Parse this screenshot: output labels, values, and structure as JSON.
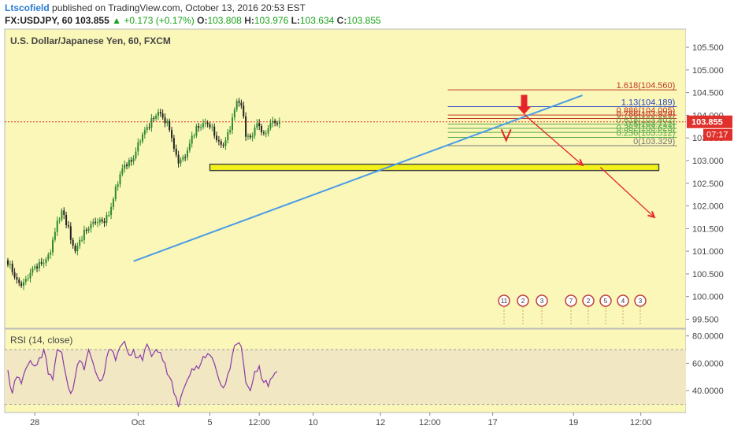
{
  "header": {
    "author": "Ltscofield",
    "published_text": "published on TradingView.com, October 13, 2016 20:53 EST",
    "symbol": "FX:USDJPY, 60",
    "last": "103.855",
    "change": "+0.173 (+0.17%)",
    "o_label": "O:",
    "o_value": "103.808",
    "h_label": "H:",
    "h_value": "103.976",
    "l_label": "L:",
    "l_value": "103.634",
    "c_label": "C:",
    "c_value": "103.855"
  },
  "colors": {
    "plot_bg": "#faf7b8",
    "candle_up": "#2e8b2e",
    "candle_down": "#222222",
    "trendline": "#4a9be8",
    "fib_red": "#c0392b",
    "fib_blue": "#2a44c8",
    "fib_green": "#59a84b",
    "zone_fill": "#f2f21a",
    "arrow": "#e8242b",
    "rsi_line": "#8a3aa8",
    "rsi_band": "#f1e7c2",
    "price_tag": "#e0302b"
  },
  "chart_data": [
    {
      "type": "candlestick",
      "title": "U.S. Dollar/Japanese Yen, 60, FXCM",
      "y_ticks": [
        "105.500",
        "105.000",
        "104.500",
        "104.000",
        "103.500",
        "103.000",
        "102.500",
        "102.000",
        "101.500",
        "101.000",
        "100.500",
        "100.000",
        "99.500"
      ],
      "y_tick_values": [
        105.5,
        105.0,
        104.5,
        104.0,
        103.5,
        103.0,
        102.5,
        102.0,
        101.5,
        101.0,
        100.5,
        100.0,
        99.5
      ],
      "ylim": [
        99.3,
        105.9
      ],
      "x_ticks": [
        "28",
        "Oct",
        "5",
        "12:00",
        "10",
        "12",
        "12:00",
        "17",
        "19",
        "12:00"
      ],
      "x_tick_index": [
        6,
        29,
        45,
        56,
        68,
        83,
        94,
        108,
        126,
        141
      ],
      "last_price_tag": "103.855",
      "countdown_tag": "07:17",
      "close_path": [
        [
          0,
          100.8
        ],
        [
          1,
          100.6
        ],
        [
          2,
          100.35
        ],
        [
          3,
          100.25
        ],
        [
          4,
          100.3
        ],
        [
          5,
          100.55
        ],
        [
          6,
          100.65
        ],
        [
          7,
          100.7
        ],
        [
          8,
          100.75
        ],
        [
          9,
          100.8
        ],
        [
          10,
          101.2
        ],
        [
          11,
          101.6
        ],
        [
          12,
          101.9
        ],
        [
          13,
          101.7
        ],
        [
          14,
          101.3
        ],
        [
          15,
          101.0
        ],
        [
          16,
          101.2
        ],
        [
          17,
          101.4
        ],
        [
          18,
          101.5
        ],
        [
          19,
          101.6
        ],
        [
          20,
          101.7
        ],
        [
          21,
          101.65
        ],
        [
          22,
          101.7
        ],
        [
          23,
          101.9
        ],
        [
          24,
          102.3
        ],
        [
          25,
          102.7
        ],
        [
          26,
          102.9
        ],
        [
          27,
          102.95
        ],
        [
          28,
          103.0
        ],
        [
          29,
          103.3
        ],
        [
          30,
          103.6
        ],
        [
          31,
          103.7
        ],
        [
          32,
          103.85
        ],
        [
          33,
          104.0
        ],
        [
          34,
          104.05
        ],
        [
          35,
          103.9
        ],
        [
          36,
          103.8
        ],
        [
          37,
          103.3
        ],
        [
          38,
          102.95
        ],
        [
          39,
          103.0
        ],
        [
          40,
          103.2
        ],
        [
          41,
          103.5
        ],
        [
          42,
          103.7
        ],
        [
          43,
          103.75
        ],
        [
          44,
          103.8
        ],
        [
          45,
          103.85
        ],
        [
          46,
          103.6
        ],
        [
          47,
          103.4
        ],
        [
          48,
          103.3
        ],
        [
          49,
          103.5
        ],
        [
          50,
          103.9
        ],
        [
          51,
          104.3
        ],
        [
          52,
          104.35
        ],
        [
          53,
          103.6
        ],
        [
          54,
          103.4
        ],
        [
          55,
          103.75
        ],
        [
          56,
          103.85
        ],
        [
          57,
          103.5
        ],
        [
          58,
          103.7
        ],
        [
          59,
          103.85
        ],
        [
          60,
          103.855
        ]
      ],
      "fibonacci": {
        "levels": [
          {
            "label": "1.618(104.560)",
            "value": 104.56
          },
          {
            "label": "1.13(104.189)",
            "value": 104.189
          },
          {
            "label": "0.886(104.005)",
            "value": 104.005
          },
          {
            "label": "0.786(103.929)",
            "value": 103.929
          },
          {
            "label": "0.618(103.802)",
            "value": 103.802
          },
          {
            "label": "0.5(103.712)",
            "value": 103.712
          },
          {
            "label": "0.382(103.623)",
            "value": 103.623
          },
          {
            "label": "0.236(103.512)",
            "value": 103.512
          },
          {
            "label": "0(103.329)",
            "value": 103.329
          }
        ]
      },
      "support_zone": [
        102.78,
        102.92
      ],
      "trendline": [
        [
          28,
          100.78
        ],
        [
          128,
          104.44
        ]
      ],
      "projection_arrows": [
        [
          [
            115,
            104.02
          ],
          [
            128,
            102.9
          ]
        ],
        [
          [
            132,
            102.85
          ],
          [
            144,
            101.75
          ]
        ]
      ],
      "event_markers": {
        "group1_counts": [
          "11",
          "2",
          "3"
        ],
        "group2_counts": [
          "7",
          "2",
          "5",
          "4",
          "3"
        ]
      }
    },
    {
      "type": "line",
      "title": "RSI (14, close)",
      "y_ticks": [
        "80.0000",
        "60.0000",
        "40.0000"
      ],
      "y_tick_values": [
        80,
        60,
        40
      ],
      "ylim": [
        24,
        85
      ],
      "band": [
        30,
        70
      ],
      "values": [
        [
          0,
          55
        ],
        [
          1,
          38
        ],
        [
          2,
          50
        ],
        [
          3,
          45
        ],
        [
          4,
          56
        ],
        [
          5,
          62
        ],
        [
          6,
          58
        ],
        [
          7,
          64
        ],
        [
          8,
          70
        ],
        [
          9,
          52
        ],
        [
          10,
          48
        ],
        [
          11,
          70
        ],
        [
          12,
          68
        ],
        [
          13,
          50
        ],
        [
          14,
          38
        ],
        [
          15,
          50
        ],
        [
          16,
          62
        ],
        [
          17,
          55
        ],
        [
          18,
          70
        ],
        [
          19,
          60
        ],
        [
          20,
          50
        ],
        [
          21,
          48
        ],
        [
          22,
          64
        ],
        [
          23,
          70
        ],
        [
          24,
          62
        ],
        [
          25,
          72
        ],
        [
          26,
          76
        ],
        [
          27,
          66
        ],
        [
          28,
          70
        ],
        [
          29,
          64
        ],
        [
          30,
          62
        ],
        [
          31,
          74
        ],
        [
          32,
          65
        ],
        [
          33,
          70
        ],
        [
          34,
          68
        ],
        [
          35,
          60
        ],
        [
          36,
          50
        ],
        [
          37,
          38
        ],
        [
          38,
          28
        ],
        [
          39,
          40
        ],
        [
          40,
          48
        ],
        [
          41,
          56
        ],
        [
          42,
          58
        ],
        [
          43,
          60
        ],
        [
          44,
          64
        ],
        [
          45,
          66
        ],
        [
          46,
          60
        ],
        [
          47,
          48
        ],
        [
          48,
          42
        ],
        [
          49,
          52
        ],
        [
          50,
          66
        ],
        [
          51,
          74
        ],
        [
          52,
          72
        ],
        [
          53,
          46
        ],
        [
          54,
          40
        ],
        [
          55,
          54
        ],
        [
          56,
          58
        ],
        [
          57,
          46
        ],
        [
          58,
          43
        ],
        [
          59,
          50
        ],
        [
          60,
          54
        ]
      ]
    }
  ]
}
